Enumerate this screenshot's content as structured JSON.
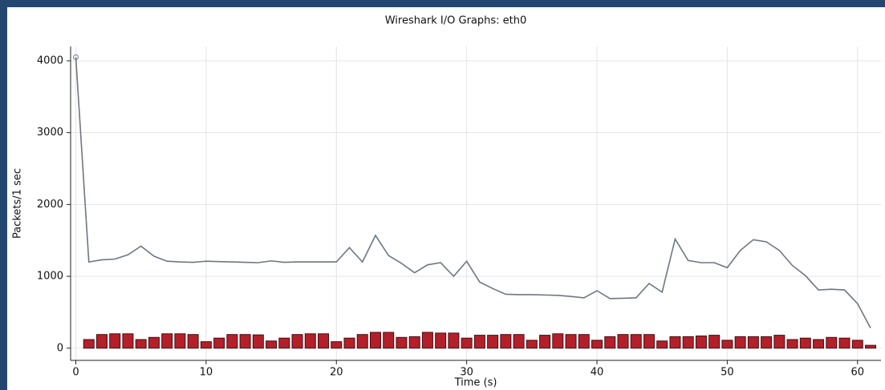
{
  "chart_data": {
    "type": "line",
    "title": "Wireshark I/O Graphs: eth0",
    "xlabel": "Time (s)",
    "ylabel": "Packets/1 sec",
    "xlim": [
      -0.4,
      61.8
    ],
    "ylim": [
      -170,
      4200
    ],
    "xticks": [
      0,
      10,
      20,
      30,
      40,
      50,
      60
    ],
    "yticks": [
      0,
      1000,
      2000,
      3000,
      4000
    ],
    "grid": true,
    "series": [
      {
        "type": "line",
        "color": "#6f7680",
        "x": [
          0,
          1,
          2,
          3,
          4,
          5,
          6,
          7,
          8,
          9,
          10,
          11,
          12,
          13,
          14,
          15,
          16,
          17,
          18,
          19,
          20,
          21,
          22,
          23,
          24,
          25,
          26,
          27,
          28,
          29,
          30,
          31,
          32,
          33,
          34,
          35,
          36,
          37,
          38,
          39,
          40,
          41,
          42,
          43,
          44,
          45,
          46,
          47,
          48,
          49,
          50,
          51,
          52,
          53,
          54,
          55,
          56,
          57,
          58,
          59,
          60,
          61
        ],
        "values": [
          4050,
          1200,
          1230,
          1240,
          1300,
          1420,
          1280,
          1210,
          1200,
          1195,
          1210,
          1205,
          1200,
          1195,
          1190,
          1215,
          1195,
          1200,
          1200,
          1200,
          1200,
          1400,
          1200,
          1570,
          1290,
          1180,
          1050,
          1160,
          1190,
          1000,
          1210,
          920,
          830,
          750,
          745,
          745,
          740,
          735,
          720,
          700,
          800,
          690,
          695,
          700,
          900,
          780,
          1520,
          1220,
          1190,
          1190,
          1120,
          1360,
          1510,
          1480,
          1360,
          1150,
          1010,
          810,
          820,
          810,
          620,
          280
        ]
      },
      {
        "type": "bar",
        "color": "#b3202a",
        "x": [
          1,
          2,
          3,
          4,
          5,
          6,
          7,
          8,
          9,
          10,
          11,
          12,
          13,
          14,
          15,
          16,
          17,
          18,
          19,
          20,
          21,
          22,
          23,
          24,
          25,
          26,
          27,
          28,
          29,
          30,
          31,
          32,
          33,
          34,
          35,
          36,
          37,
          38,
          39,
          40,
          41,
          42,
          43,
          44,
          45,
          46,
          47,
          48,
          49,
          50,
          51,
          52,
          53,
          54,
          55,
          56,
          57,
          58,
          59,
          60,
          61
        ],
        "values": [
          120,
          190,
          200,
          200,
          120,
          150,
          200,
          200,
          190,
          90,
          140,
          190,
          190,
          185,
          100,
          140,
          190,
          200,
          200,
          90,
          140,
          190,
          220,
          220,
          150,
          160,
          220,
          210,
          210,
          140,
          180,
          180,
          190,
          190,
          110,
          180,
          200,
          190,
          190,
          110,
          160,
          190,
          190,
          190,
          100,
          160,
          160,
          170,
          180,
          110,
          160,
          160,
          160,
          180,
          120,
          140,
          120,
          150,
          140,
          110,
          40
        ]
      }
    ]
  }
}
